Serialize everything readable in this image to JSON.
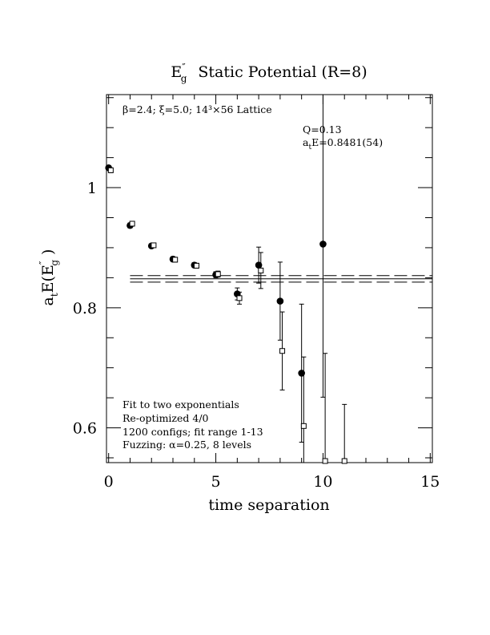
{
  "chart_data": {
    "type": "scatter",
    "title": "E″g Static Potential (R=8)",
    "title_parts": {
      "main": "E",
      "sup": "″",
      "sub": "g",
      "rest": "Static Potential (R=8)"
    },
    "xlabel": "time separation",
    "ylabel": "aₜE(E″g )",
    "ylabel_parts": {
      "a": "a",
      "a_sub": "t",
      "mid": "E(E",
      "sup": "″",
      "sub": "g",
      "end": " )"
    },
    "xlim": [
      -0.1,
      15.1
    ],
    "ylim": [
      0.542,
      1.155
    ],
    "xticks": [
      0,
      5,
      10,
      15
    ],
    "xtick_labels": [
      "0",
      "5",
      "10",
      "15"
    ],
    "yticks": [
      0.6,
      0.8,
      1.0
    ],
    "ytick_labels": [
      "0.6",
      "0.8",
      "1"
    ],
    "x_minor_step": 1,
    "y_minor_step": 0.05,
    "grid": false,
    "annotations": {
      "lattice": "β=2.4; ξ=5.0; 14³×56 Lattice",
      "q": "Q=0.13",
      "energy": "aₜE=0.8481(54)",
      "energy_parts": {
        "a": "a",
        "sub": "t",
        "rest": "E=0.8481(54)"
      },
      "fit_lines": [
        "Fit to two exponentials",
        "Re-optimized 4/0",
        "1200 configs; fit range 1-13",
        "Fuzzing: α=0.25, 8 levels"
      ]
    },
    "fit": {
      "value": 0.8481,
      "error": 0.0054,
      "x_range": [
        1,
        15.1
      ]
    },
    "series": [
      {
        "marker": "filled-circle",
        "points": [
          {
            "x": 0,
            "y": 1.033,
            "err": 0.003
          },
          {
            "x": 1,
            "y": 0.937,
            "err": 0.004
          },
          {
            "x": 2,
            "y": 0.903,
            "err": 0.003
          },
          {
            "x": 3,
            "y": 0.881,
            "err": 0.004
          },
          {
            "x": 4,
            "y": 0.871,
            "err": 0.004
          },
          {
            "x": 5,
            "y": 0.855,
            "err": 0.005
          },
          {
            "x": 6,
            "y": 0.823,
            "err": 0.01
          },
          {
            "x": 7,
            "y": 0.871,
            "err": 0.03
          },
          {
            "x": 8,
            "y": 0.811,
            "err": 0.065
          },
          {
            "x": 9,
            "y": 0.691,
            "err": 0.115
          },
          {
            "x": 10,
            "y": 0.906,
            "err": 0.255
          }
        ]
      },
      {
        "marker": "open-square",
        "points": [
          {
            "x": 0.1,
            "y": 1.029,
            "err": 0.004
          },
          {
            "x": 1.1,
            "y": 0.94,
            "err": 0.004
          },
          {
            "x": 2.1,
            "y": 0.904,
            "err": 0.003
          },
          {
            "x": 3.1,
            "y": 0.88,
            "err": 0.004
          },
          {
            "x": 4.1,
            "y": 0.87,
            "err": 0.004
          },
          {
            "x": 5.1,
            "y": 0.856,
            "err": 0.005
          },
          {
            "x": 6.1,
            "y": 0.816,
            "err": 0.01
          },
          {
            "x": 7.1,
            "y": 0.862,
            "err": 0.03
          },
          {
            "x": 8.1,
            "y": 0.728,
            "err": 0.065
          },
          {
            "x": 9.1,
            "y": 0.603,
            "err": 0.115
          },
          {
            "x": 10.1,
            "y": 0.544,
            "err": 0.18
          },
          {
            "x": 11,
            "y": 0.544,
            "err": 0.095
          }
        ]
      }
    ]
  }
}
